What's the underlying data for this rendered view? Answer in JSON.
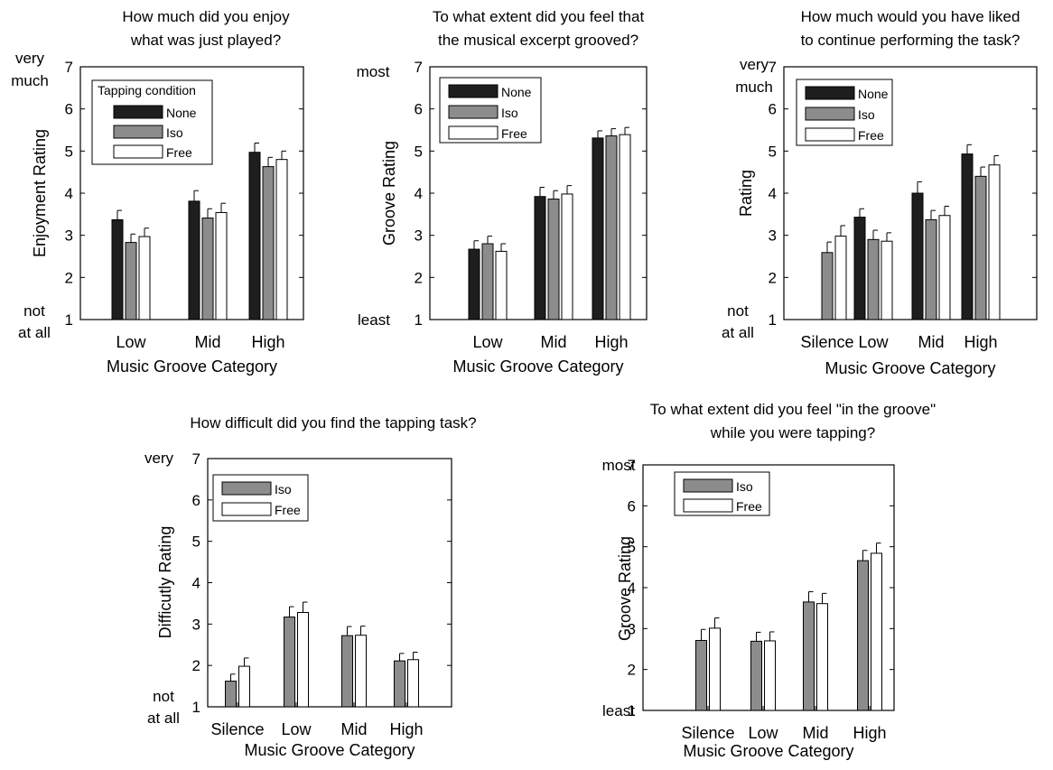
{
  "colors": {
    "None": "#1e1e1e",
    "Iso": "#8c8c8c",
    "Free": "#ffffff",
    "outline": "#000000"
  },
  "chart_data": [
    {
      "type": "bar",
      "title": [
        "How much did you enjoy",
        "what was just played?"
      ],
      "xlabel": "Music Groove Category",
      "ylabel": "Enjoyment Rating",
      "ylim": [
        1,
        7
      ],
      "yticks": [
        "1",
        "2",
        "3",
        "4",
        "5",
        "6",
        "7"
      ],
      "y_top_label": [
        "very",
        "much"
      ],
      "y_bottom_label": [
        "not",
        "at all"
      ],
      "categories": [
        "Low",
        "Mid",
        "High"
      ],
      "legend_title": "Tapping condition",
      "legend_position": "top-left",
      "series": [
        {
          "name": "None",
          "values": [
            3.37,
            3.81,
            4.97
          ],
          "errors": [
            0.22,
            0.25,
            0.22
          ]
        },
        {
          "name": "Iso",
          "values": [
            2.83,
            3.41,
            4.63
          ],
          "errors": [
            0.2,
            0.22,
            0.22
          ]
        },
        {
          "name": "Free",
          "values": [
            2.97,
            3.54,
            4.8
          ],
          "errors": [
            0.2,
            0.22,
            0.2
          ]
        }
      ]
    },
    {
      "type": "bar",
      "title": [
        "To what extent did you feel that",
        "the musical excerpt grooved?"
      ],
      "xlabel": "Music Groove Category",
      "ylabel": "Groove Rating",
      "ylim": [
        1,
        7
      ],
      "yticks": [
        "1",
        "2",
        "3",
        "4",
        "5",
        "6",
        "7"
      ],
      "y_top_label": [
        "most"
      ],
      "y_bottom_label": [
        "least"
      ],
      "categories": [
        "Low",
        "Mid",
        "High"
      ],
      "legend_title": "",
      "legend_position": "top-left",
      "series": [
        {
          "name": "None",
          "values": [
            2.67,
            3.92,
            5.31
          ],
          "errors": [
            0.2,
            0.22,
            0.17
          ]
        },
        {
          "name": "Iso",
          "values": [
            2.8,
            3.86,
            5.36
          ],
          "errors": [
            0.18,
            0.2,
            0.17
          ]
        },
        {
          "name": "Free",
          "values": [
            2.62,
            3.98,
            5.39
          ],
          "errors": [
            0.18,
            0.2,
            0.17
          ]
        }
      ]
    },
    {
      "type": "bar",
      "title": [
        "How much would you have liked",
        "to continue performing the task?"
      ],
      "xlabel": "Music Groove Category",
      "ylabel": "Rating",
      "ylim": [
        1,
        7
      ],
      "yticks": [
        "1",
        "2",
        "3",
        "4",
        "5",
        "6",
        "7"
      ],
      "y_top_label": [
        "very",
        "much"
      ],
      "y_bottom_label": [
        "not",
        "at all"
      ],
      "categories": [
        "Silence",
        "Low",
        "Mid",
        "High"
      ],
      "legend_title": "",
      "legend_position": "top-left",
      "series": [
        {
          "name": "None",
          "values": [
            null,
            3.43,
            4.0,
            4.93
          ],
          "errors": [
            null,
            0.2,
            0.27,
            0.22
          ]
        },
        {
          "name": "Iso",
          "values": [
            2.59,
            2.9,
            3.37,
            4.4
          ],
          "errors": [
            0.25,
            0.22,
            0.22,
            0.22
          ]
        },
        {
          "name": "Free",
          "values": [
            2.98,
            2.86,
            3.47,
            4.67
          ],
          "errors": [
            0.25,
            0.2,
            0.22,
            0.22
          ]
        }
      ]
    },
    {
      "type": "bar",
      "title": [
        "How difficult did you find the tapping task?"
      ],
      "xlabel": "Music Groove Category",
      "ylabel": "Difficutly Rating",
      "ylim": [
        1,
        7
      ],
      "yticks": [
        "1",
        "2",
        "3",
        "4",
        "5",
        "6",
        "7"
      ],
      "y_top_label": [
        "very"
      ],
      "y_bottom_label": [
        "not",
        "at all"
      ],
      "categories": [
        "Silence",
        "Low",
        "Mid",
        "High"
      ],
      "legend_title": "",
      "legend_position": "top-left",
      "series": [
        {
          "name": "Iso",
          "values": [
            1.62,
            3.17,
            2.72,
            2.11
          ],
          "errors": [
            0.17,
            0.25,
            0.22,
            0.18
          ]
        },
        {
          "name": "Free",
          "values": [
            1.98,
            3.28,
            2.73,
            2.14
          ],
          "errors": [
            0.2,
            0.25,
            0.22,
            0.18
          ]
        }
      ]
    },
    {
      "type": "bar",
      "title": [
        "To what extent did you feel \"in the groove\"",
        "while you were tapping?"
      ],
      "xlabel": "Music Groove Category",
      "ylabel": "Groove Rating",
      "ylim": [
        1,
        7
      ],
      "yticks": [
        "1",
        "2",
        "3",
        "4",
        "5",
        "6",
        "7"
      ],
      "y_top_label": [
        "most"
      ],
      "y_bottom_label": [
        "least"
      ],
      "categories": [
        "Silence",
        "Low",
        "Mid",
        "High"
      ],
      "legend_title": "",
      "legend_position": "top-left",
      "series": [
        {
          "name": "Iso",
          "values": [
            2.71,
            2.69,
            3.65,
            4.66
          ],
          "errors": [
            0.27,
            0.22,
            0.25,
            0.25
          ]
        },
        {
          "name": "Free",
          "values": [
            3.01,
            2.7,
            3.61,
            4.84
          ],
          "errors": [
            0.25,
            0.22,
            0.25,
            0.25
          ]
        }
      ]
    }
  ]
}
